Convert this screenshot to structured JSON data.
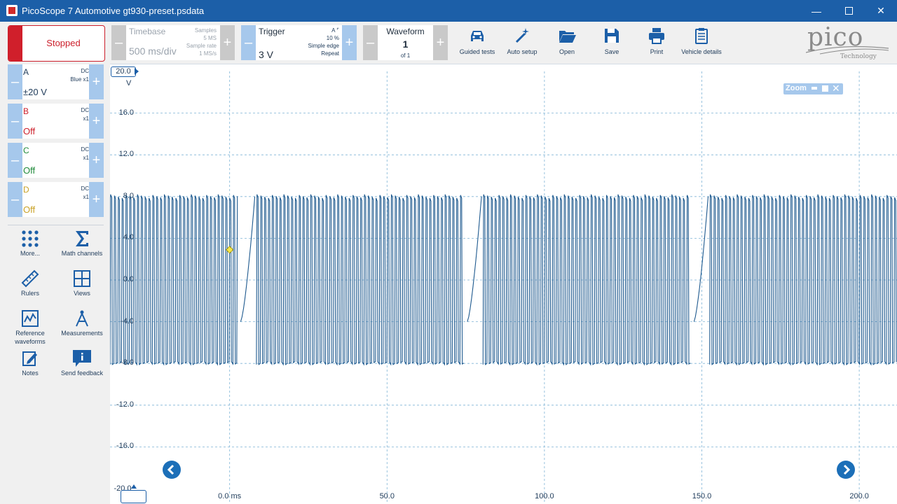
{
  "window": {
    "title": "PicoScope 7 Automotive gt930-preset.psdata"
  },
  "toolbar": {
    "run_state": "Stopped",
    "timebase": {
      "label": "Timebase",
      "value": "500 ms/div",
      "samples_label": "Samples",
      "samples_value": "5 MS",
      "rate_label": "Sample rate",
      "rate_value": "1 MS/s"
    },
    "trigger": {
      "label": "Trigger",
      "value": "3 V",
      "channel": "A",
      "percent": "10 %",
      "type": "Simple edge",
      "mode": "Repeat"
    },
    "waveform": {
      "label": "Waveform",
      "index": "1",
      "of": "of 1"
    },
    "buttons": [
      {
        "label": "Guided tests",
        "icon": "car-icon"
      },
      {
        "label": "Auto setup",
        "icon": "wand-icon"
      },
      {
        "label": "Open",
        "icon": "folder-icon"
      },
      {
        "label": "Save",
        "icon": "save-icon"
      },
      {
        "label": "Print",
        "icon": "printer-icon"
      },
      {
        "label": "Vehicle details",
        "icon": "clipboard-icon"
      }
    ],
    "logo": {
      "word": "pico",
      "sub": "Technology"
    }
  },
  "channels": [
    {
      "name": "A",
      "coupling": "DC",
      "probe": "Blue x1",
      "range": "±20 V",
      "color": "#1f3b5a"
    },
    {
      "name": "B",
      "coupling": "DC",
      "probe": "x1",
      "range": "Off",
      "color": "#cc1f2b"
    },
    {
      "name": "C",
      "coupling": "DC",
      "probe": "x1",
      "range": "Off",
      "color": "#1f8a3a"
    },
    {
      "name": "D",
      "coupling": "DC",
      "probe": "x1",
      "range": "Off",
      "color": "#c9a227"
    }
  ],
  "tools": [
    {
      "label": "More...",
      "icon": "grid-dots-icon"
    },
    {
      "label": "Math channels",
      "icon": "sigma-icon"
    },
    {
      "label": "Rulers",
      "icon": "ruler-icon"
    },
    {
      "label": "Views",
      "icon": "views-grid-icon"
    },
    {
      "label": "Reference waveforms",
      "icon": "reference-waveform-icon"
    },
    {
      "label": "Measurements",
      "icon": "compass-icon"
    },
    {
      "label": "Notes",
      "icon": "notes-icon"
    },
    {
      "label": "Send feedback",
      "icon": "feedback-icon"
    }
  ],
  "chart_data": {
    "type": "line",
    "ylabel": "V",
    "y_top_label": "20.0",
    "y_bottom_label": "-20.0",
    "y_ticks": [
      "16.0",
      "12.0",
      "8.0",
      "4.0",
      "0.0",
      "-4.0",
      "-8.0",
      "-12.0",
      "-16.0"
    ],
    "ylim": [
      -20,
      20
    ],
    "xlim": [
      -38,
      212
    ],
    "x_ticks": [
      {
        "value": 0,
        "label": "0.0 ms"
      },
      {
        "value": 50,
        "label": "50.0"
      },
      {
        "value": 100,
        "label": "100.0"
      },
      {
        "value": 150,
        "label": "150.0"
      },
      {
        "value": 200,
        "label": "200.0"
      }
    ],
    "grid": true,
    "series": [
      {
        "segments": [
          {
            "start": -38,
            "end": 2.5
          },
          {
            "start": 8.5,
            "end": 74.5
          },
          {
            "start": 80.5,
            "end": 146.5
          },
          {
            "start": 152.5,
            "end": 212
          }
        ],
        "period_ms": 1.22,
        "amplitude_high": 8.2,
        "amplitude_low": -8.1,
        "color": "#1f5a8f"
      }
    ],
    "trigger_marker": {
      "x": 0,
      "y": 2.9
    }
  },
  "zoom": {
    "label": "Zoom"
  }
}
